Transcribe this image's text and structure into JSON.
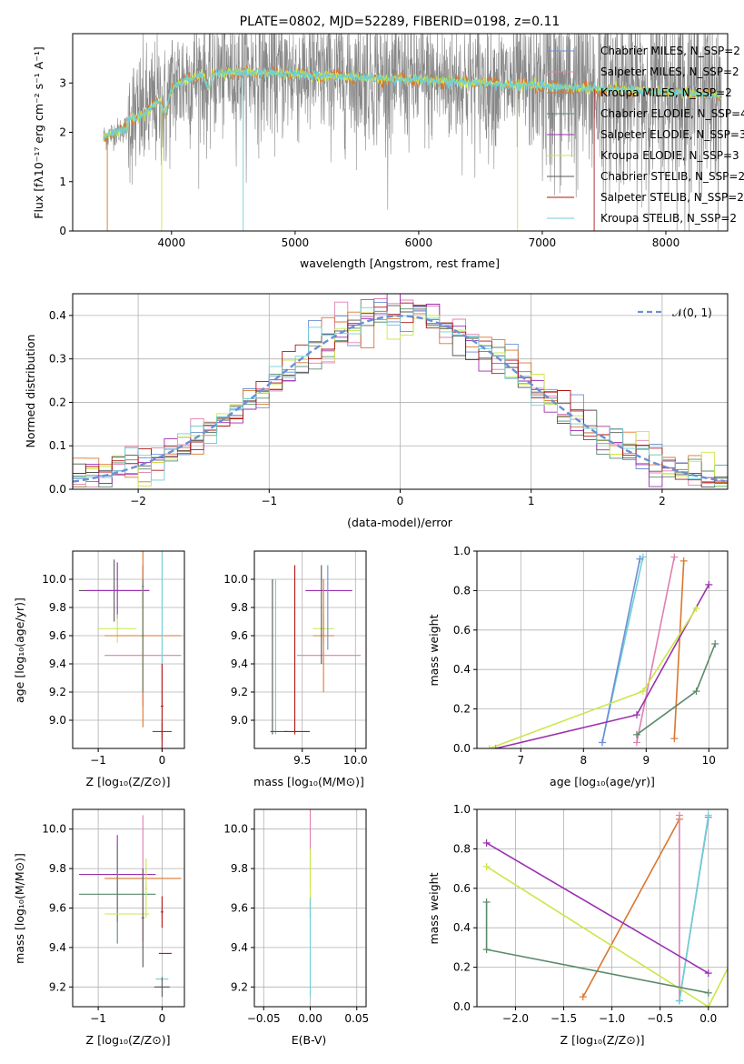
{
  "colors": [
    "#6a8fd6",
    "#e07fb0",
    "#d9772e",
    "#5a8a6a",
    "#9b2fb0",
    "#c9e84a",
    "#555555",
    "#b01515",
    "#6fcfd6"
  ],
  "chart_data": [
    {
      "type": "line",
      "title": "PLATE=0802, MJD=52289, FIBERID=0198, z=0.11",
      "xlabel": "wavelength [Angstrom, rest frame]",
      "ylabel": "Flux [fλ10⁻¹⁷ erg cm⁻² s⁻¹ A⁻¹]",
      "xlim": [
        3200,
        8500
      ],
      "ylim": [
        0,
        4
      ],
      "xticks": [
        4000,
        5000,
        6000,
        7000,
        8000
      ],
      "yticks": [
        0,
        1,
        2,
        3
      ],
      "legend_position": "right",
      "series": [
        {
          "name": "Chabrier MILES, N_SSP=2"
        },
        {
          "name": "Salpeter MILES, N_SSP=2"
        },
        {
          "name": "Kroupa MILES, N_SSP=2"
        },
        {
          "name": "Chabrier ELODIE, N_SSP=4"
        },
        {
          "name": "Salpeter ELODIE, N_SSP=3"
        },
        {
          "name": "Kroupa ELODIE, N_SSP=3"
        },
        {
          "name": "Chabrier STELIB, N_SSP=2"
        },
        {
          "name": "Salpeter STELIB, N_SSP=2"
        },
        {
          "name": "Kroupa STELIB, N_SSP=2"
        }
      ]
    },
    {
      "type": "step",
      "xlabel": "(data-model)/error",
      "ylabel": "Normed distribution",
      "xlim": [
        -2.5,
        2.5
      ],
      "ylim": [
        0,
        0.45
      ],
      "xticks": [
        -2,
        -1,
        0,
        1,
        2
      ],
      "yticks": [
        0.0,
        0.1,
        0.2,
        0.3,
        0.4
      ],
      "grid": true,
      "reference": {
        "name": "𝒩(0, 1)",
        "mean": 0,
        "sigma": 1
      },
      "legend_position": "top-right"
    },
    {
      "type": "errorbar",
      "xlabel": "Z [log₁₀(Z/Z⊙)]",
      "ylabel": "age  [log₁₀(age/yr)]",
      "xlim": [
        -1.4,
        0.35
      ],
      "ylim": [
        8.8,
        10.2
      ],
      "xticks": [
        -1,
        0
      ],
      "yticks": [
        9.0,
        9.2,
        9.4,
        9.6,
        9.8,
        10.0
      ],
      "grid": true,
      "points": [
        {
          "x": -0.75,
          "y": 9.92,
          "xerr": 0.55,
          "yerr": 0.22,
          "c": 6
        },
        {
          "x": -0.7,
          "y": 9.92,
          "xerr": 0.5,
          "yerr": 0.2,
          "c": 4
        },
        {
          "x": -0.7,
          "y": 9.65,
          "xerr": 0.3,
          "yerr": 0.1,
          "c": 5
        },
        {
          "x": -0.3,
          "y": 9.95,
          "xerr": 0.02,
          "yerr": 0.15,
          "c": 0
        },
        {
          "x": -0.3,
          "y": 9.6,
          "xerr": 0.02,
          "yerr": 0.5,
          "c": 1
        },
        {
          "x": -0.3,
          "y": 9.6,
          "xerr": 0.6,
          "yerr": 0.65,
          "c": 2
        },
        {
          "x": -0.3,
          "y": 9.46,
          "xerr": 0.6,
          "yerr": 0.05,
          "c": 1
        },
        {
          "x": -0.3,
          "y": 9.6,
          "xerr": 0.02,
          "yerr": 0.4,
          "c": 3
        },
        {
          "x": 0.0,
          "y": 9.72,
          "xerr": 0.0,
          "yerr": 0.6,
          "c": 8
        },
        {
          "x": 0.0,
          "y": 8.92,
          "xerr": 0.15,
          "yerr": 0.06,
          "c": 6
        },
        {
          "x": 0.0,
          "y": 9.1,
          "xerr": 0.02,
          "yerr": 0.3,
          "c": 7
        }
      ]
    },
    {
      "type": "errorbar",
      "xlabel": "mass [log₁₀(M/M⊙)]",
      "ylabel": "",
      "xlim": [
        9.05,
        10.1
      ],
      "ylim": [
        8.8,
        10.2
      ],
      "xticks": [
        9.5,
        10.0
      ],
      "yticks": [
        9.0,
        9.2,
        9.4,
        9.6,
        9.8,
        10.0
      ],
      "grid": true,
      "points": [
        {
          "x": 9.22,
          "y": 9.45,
          "xerr": 0.0,
          "yerr": 0.55,
          "c": 6
        },
        {
          "x": 9.25,
          "y": 9.45,
          "xerr": 0.0,
          "yerr": 0.55,
          "c": 8
        },
        {
          "x": 9.28,
          "y": 8.92,
          "xerr": 0.08,
          "yerr": 0.0,
          "c": 6
        },
        {
          "x": 9.45,
          "y": 8.92,
          "xerr": 0.12,
          "yerr": 0.0,
          "c": 7
        },
        {
          "x": 9.43,
          "y": 9.5,
          "xerr": 0.0,
          "yerr": 0.6,
          "c": 7
        },
        {
          "x": 9.75,
          "y": 9.92,
          "xerr": 0.22,
          "yerr": 0.0,
          "c": 4
        },
        {
          "x": 9.7,
          "y": 9.65,
          "xerr": 0.1,
          "yerr": 0.1,
          "c": 5
        },
        {
          "x": 9.7,
          "y": 9.6,
          "xerr": 0.1,
          "yerr": 0.4,
          "c": 2
        },
        {
          "x": 9.75,
          "y": 9.46,
          "xerr": 0.3,
          "yerr": 0.0,
          "c": 1
        },
        {
          "x": 9.68,
          "y": 9.75,
          "xerr": 0.0,
          "yerr": 0.35,
          "c": 6
        },
        {
          "x": 9.74,
          "y": 9.8,
          "xerr": 0.0,
          "yerr": 0.3,
          "c": 0
        }
      ]
    },
    {
      "type": "line",
      "xlabel": "age  [log₁₀(age/yr)]",
      "ylabel": "mass weight",
      "xlim": [
        6.3,
        10.3
      ],
      "ylim": [
        0,
        1
      ],
      "xticks": [
        7,
        8,
        9,
        10
      ],
      "yticks": [
        0.0,
        0.2,
        0.4,
        0.6,
        0.8,
        1.0
      ],
      "grid": true,
      "series": [
        {
          "c": 8,
          "x": [
            8.3,
            8.95
          ],
          "y": [
            0.03,
            0.97
          ]
        },
        {
          "c": 0,
          "x": [
            8.3,
            8.9
          ],
          "y": [
            0.03,
            0.96
          ]
        },
        {
          "c": 1,
          "x": [
            8.85,
            9.45
          ],
          "y": [
            0.03,
            0.97
          ]
        },
        {
          "c": 2,
          "x": [
            9.45,
            9.6
          ],
          "y": [
            0.05,
            0.95
          ]
        },
        {
          "c": 4,
          "x": [
            6.6,
            8.85,
            10.0
          ],
          "y": [
            0.0,
            0.17,
            0.83
          ]
        },
        {
          "c": 5,
          "x": [
            6.5,
            8.95,
            9.8
          ],
          "y": [
            0.0,
            0.29,
            0.71
          ]
        },
        {
          "c": 3,
          "x": [
            8.85,
            9.8,
            10.1
          ],
          "y": [
            0.07,
            0.29,
            0.53
          ]
        }
      ]
    },
    {
      "type": "errorbar",
      "xlabel": "Z [log₁₀(Z/Z⊙)]",
      "ylabel": "mass [log₁₀(M/M⊙)]",
      "xlim": [
        -1.4,
        0.35
      ],
      "ylim": [
        9.1,
        10.1
      ],
      "xticks": [
        -1,
        0
      ],
      "yticks": [
        9.2,
        9.4,
        9.6,
        9.8,
        10.0
      ],
      "grid": true,
      "points": [
        {
          "x": -0.7,
          "y": 9.77,
          "xerr": 0.6,
          "yerr": 0.0,
          "c": 4
        },
        {
          "x": -0.7,
          "y": 9.75,
          "xerr": 0.02,
          "yerr": 0.22,
          "c": 4
        },
        {
          "x": -0.7,
          "y": 9.67,
          "xerr": 0.6,
          "yerr": 0.25,
          "c": 3
        },
        {
          "x": -0.55,
          "y": 9.57,
          "xerr": 0.35,
          "yerr": 0.0,
          "c": 5
        },
        {
          "x": -0.3,
          "y": 9.75,
          "xerr": 0.6,
          "yerr": 0.0,
          "c": 2
        },
        {
          "x": -0.3,
          "y": 9.75,
          "xerr": 0.02,
          "yerr": 0.32,
          "c": 1
        },
        {
          "x": -0.3,
          "y": 9.55,
          "xerr": 0.02,
          "yerr": 0.25,
          "c": 6
        },
        {
          "x": -0.25,
          "y": 9.7,
          "xerr": 0.02,
          "yerr": 0.15,
          "c": 5
        },
        {
          "x": 0.05,
          "y": 9.37,
          "xerr": 0.1,
          "yerr": 0.0,
          "c": 7
        },
        {
          "x": 0.0,
          "y": 9.58,
          "xerr": 0.02,
          "yerr": 0.08,
          "c": 7
        },
        {
          "x": 0.0,
          "y": 9.24,
          "xerr": 0.1,
          "yerr": 0.0,
          "c": 8
        },
        {
          "x": 0.0,
          "y": 9.2,
          "xerr": 0.12,
          "yerr": 0.05,
          "c": 6
        }
      ]
    },
    {
      "type": "errorbar",
      "xlabel": "E(B-V)",
      "ylabel": "",
      "xlim": [
        -0.06,
        0.06
      ],
      "ylim": [
        9.1,
        10.1
      ],
      "xticks": [
        -0.05,
        0.0,
        0.05
      ],
      "yticks": [
        9.2,
        9.4,
        9.6,
        9.8,
        10.0
      ],
      "grid": true,
      "points": [
        {
          "x": 0.0,
          "y": 9.9,
          "xerr": 0.0,
          "yerr": 0.2,
          "c": 1
        },
        {
          "x": 0.0,
          "y": 9.75,
          "xerr": 0.0,
          "yerr": 0.15,
          "c": 5
        },
        {
          "x": 0.0,
          "y": 9.6,
          "xerr": 0.0,
          "yerr": 0.05,
          "c": 7
        },
        {
          "x": 0.0,
          "y": 9.4,
          "xerr": 0.0,
          "yerr": 0.25,
          "c": 8
        }
      ]
    },
    {
      "type": "line",
      "xlabel": "Z [log₁₀(Z/Z⊙)]",
      "ylabel": "mass weight",
      "xlim": [
        -2.4,
        0.2
      ],
      "ylim": [
        0,
        1
      ],
      "xticks": [
        -2.0,
        -1.5,
        -1.0,
        -0.5,
        0.0
      ],
      "yticks": [
        0.0,
        0.2,
        0.4,
        0.6,
        0.8,
        1.0
      ],
      "grid": true,
      "series": [
        {
          "c": 2,
          "x": [
            -1.3,
            -0.3
          ],
          "y": [
            0.05,
            0.95
          ]
        },
        {
          "c": 1,
          "x": [
            -0.3,
            -0.3
          ],
          "y": [
            0.03,
            0.97
          ]
        },
        {
          "c": 0,
          "x": [
            -0.3,
            0.0
          ],
          "y": [
            0.03,
            0.96
          ]
        },
        {
          "c": 8,
          "x": [
            -0.3,
            0.0
          ],
          "y": [
            0.03,
            0.97
          ]
        },
        {
          "c": 4,
          "x": [
            -2.3,
            0.0
          ],
          "y": [
            0.83,
            0.17
          ]
        },
        {
          "c": 5,
          "x": [
            -2.3,
            0.0,
            0.3
          ],
          "y": [
            0.71,
            0.0,
            0.29
          ]
        },
        {
          "c": 3,
          "x": [
            -2.3,
            -2.3,
            0.0
          ],
          "y": [
            0.53,
            0.29,
            0.07
          ]
        }
      ]
    }
  ]
}
